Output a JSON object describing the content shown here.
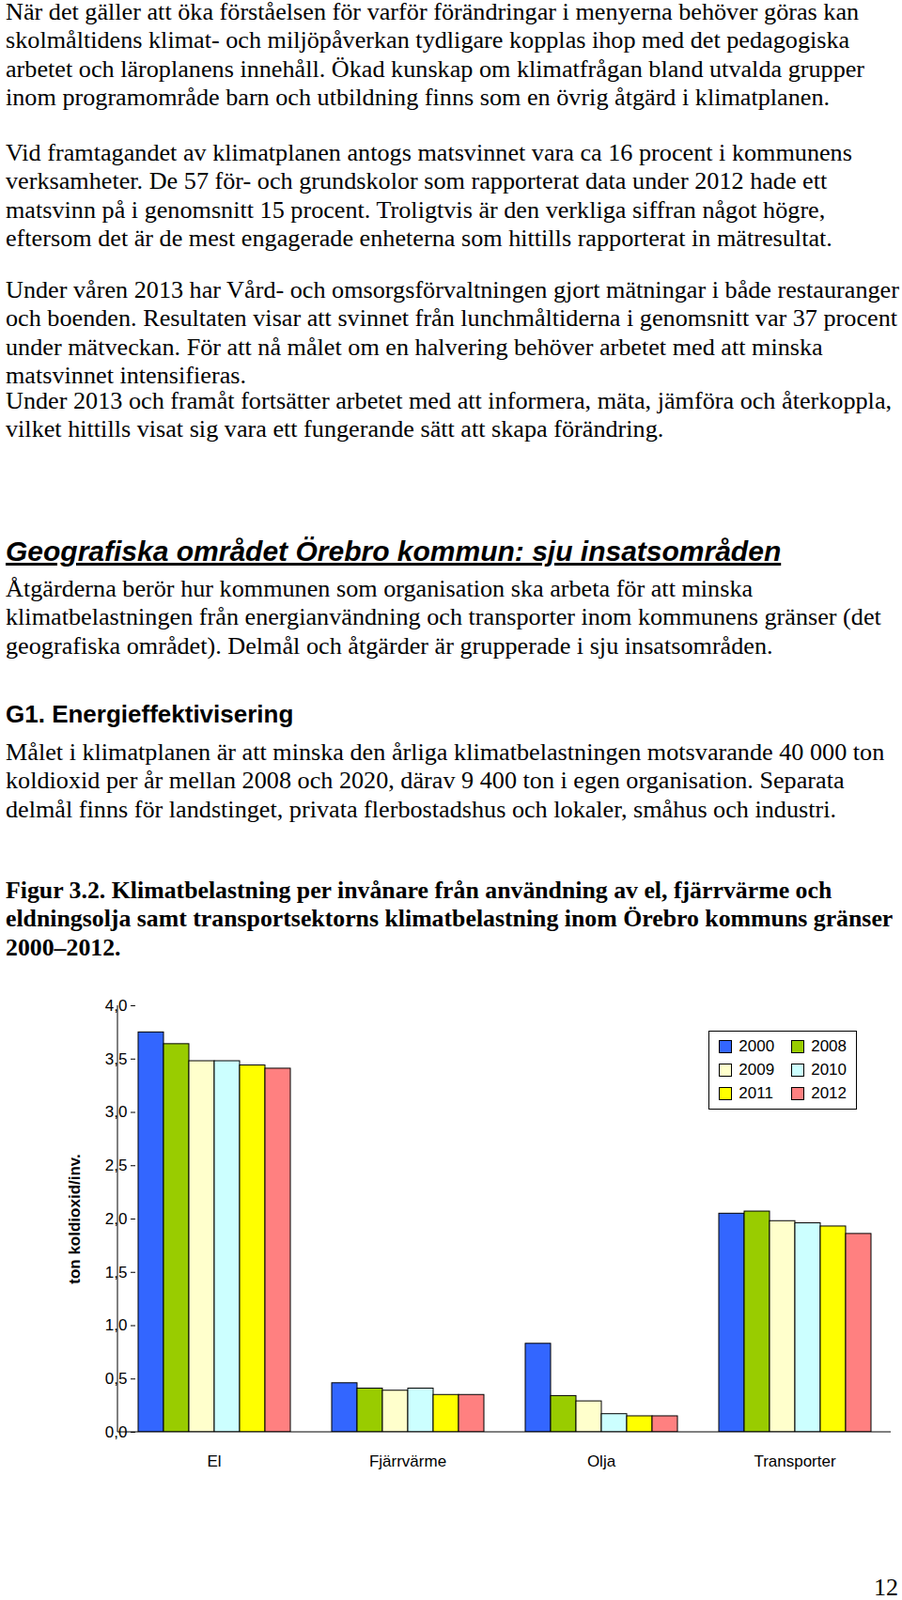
{
  "blocks": [
    {
      "kind": "p",
      "lines": [
        "När det gäller att öka förståelsen för varför förändringar i menyerna behöver göras kan",
        "skolmåltidens klimat- och miljöpåverkan tydligare kopplas ihop med det pedagogiska",
        "arbetet och läroplanens innehåll. Ökad kunskap om klimatfrågan bland utvalda grupper",
        "inom programområde barn och utbildning finns som en övrig åtgärd i klimatplanen."
      ]
    },
    {
      "kind": "p",
      "lines": [
        "Vid framtagandet av klimatplanen antogs matsvinnet vara ca 16 procent i kommunens",
        "verksamheter. De 57 för- och grundskolor som rapporterat data under 2012 hade ett",
        "matsvinn på i genomsnitt 15 procent. Troligtvis är den verkliga siffran något högre,",
        "eftersom det är de mest engagerade enheterna som hittills rapporterat in mätresultat."
      ]
    },
    {
      "kind": "p",
      "lines": [
        "Under våren 2013 har Vård- och omsorgsförvaltningen gjort mätningar i både restauranger",
        "och boenden. Resultaten visar att svinnet från lunchmåltiderna i genomsnitt var 37 procent",
        "under mätveckan. För att nå målet om en halvering behöver arbetet med att minska",
        "matsvinnet intensifieras."
      ]
    },
    {
      "kind": "p",
      "lines": [
        "Under 2013 och framåt fortsätter arbetet med att informera, mäta, jämföra och återkoppla,",
        "vilket hittills visat sig vara ett fungerande sätt att skapa förändring."
      ]
    },
    {
      "kind": "h2",
      "lines": [
        "Geografiska området Örebro kommun: sju insatsområden"
      ]
    },
    {
      "kind": "p",
      "lines": [
        "Åtgärderna berör hur kommunen som organisation ska arbeta för att minska",
        "klimatbelastningen från energianvändning och transporter inom kommunens gränser (det",
        "geografiska området). Delmål och åtgärder är grupperade i sju insatsområden."
      ]
    },
    {
      "kind": "h3",
      "lines": [
        "G1. Energieffektivisering"
      ]
    },
    {
      "kind": "p",
      "lines": [
        "Målet i klimatplanen är att minska den årliga klimatbelastningen motsvarande 40 000 ton",
        "koldioxid per år mellan 2008 och 2020, därav 9 400 ton i egen organisation. Separata",
        "delmål finns för landstinget, privata flerbostadshus och lokaler, småhus och industri."
      ]
    },
    {
      "kind": "cap",
      "lines": [
        "Figur 3.2. Klimatbelastning per invånare från användning av el, fjärrvärme och",
        "eldningsolja samt transportsektorns klimatbelastning inom Örebro kommuns gränser",
        "2000–2012."
      ]
    }
  ],
  "chart_data": {
    "type": "bar",
    "ylabel": "ton koldioxid/inv.",
    "categories": [
      "El",
      "Fjärrvärme",
      "Olja",
      "Transporter"
    ],
    "series": [
      {
        "name": "2000",
        "color": "#3366ff",
        "values": [
          3.75,
          0.46,
          0.83,
          2.05
        ]
      },
      {
        "name": "2008",
        "color": "#99cc00",
        "values": [
          3.64,
          0.41,
          0.34,
          2.07
        ]
      },
      {
        "name": "2009",
        "color": "#ffffcc",
        "values": [
          3.48,
          0.39,
          0.29,
          1.98
        ]
      },
      {
        "name": "2010",
        "color": "#ccffff",
        "values": [
          3.48,
          0.41,
          0.17,
          1.96
        ]
      },
      {
        "name": "2011",
        "color": "#ffff00",
        "values": [
          3.44,
          0.35,
          0.15,
          1.93
        ]
      },
      {
        "name": "2012",
        "color": "#ff8080",
        "values": [
          3.41,
          0.35,
          0.15,
          1.86
        ]
      }
    ],
    "ylim": [
      0,
      4
    ],
    "yticks": [
      {
        "value": 0,
        "label": "0,0"
      },
      {
        "value": 0.5,
        "label": "0,5"
      },
      {
        "value": 1,
        "label": "1,0"
      },
      {
        "value": 1.5,
        "label": "1,5"
      },
      {
        "value": 2,
        "label": "2,0"
      },
      {
        "value": 2.5,
        "label": "2,5"
      },
      {
        "value": 3,
        "label": "3,0"
      },
      {
        "value": 3.5,
        "label": "3,5"
      },
      {
        "value": 4,
        "label": "4,0"
      }
    ],
    "grid": false,
    "legend": "top-right"
  },
  "page_number": "12"
}
